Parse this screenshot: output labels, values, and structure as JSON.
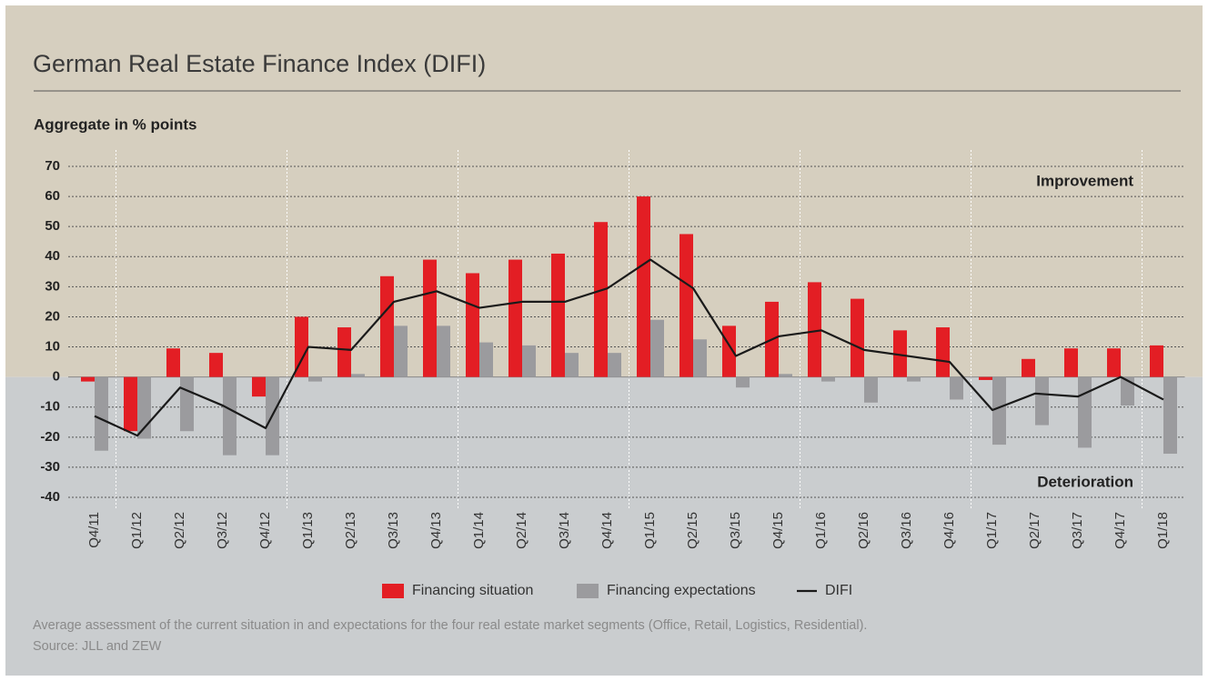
{
  "chart_data": {
    "type": "bar",
    "title": "German Real Estate Finance Index (DIFI)",
    "subtitle": "Aggregate in % points",
    "annotations": [
      "Improvement",
      "Deterioration"
    ],
    "categories": [
      "Q4/11",
      "Q1/12",
      "Q2/12",
      "Q3/12",
      "Q4/12",
      "Q1/13",
      "Q2/13",
      "Q3/13",
      "Q4/13",
      "Q1/14",
      "Q2/14",
      "Q3/14",
      "Q4/14",
      "Q1/15",
      "Q2/15",
      "Q3/15",
      "Q4/15",
      "Q1/16",
      "Q2/16",
      "Q3/16",
      "Q4/16",
      "Q1/17",
      "Q2/17",
      "Q3/17",
      "Q4/17",
      "Q1/18"
    ],
    "series": [
      {
        "name": "Financing situation",
        "type": "bar",
        "color": "#e31e24",
        "values": [
          -1.5,
          -18,
          9.5,
          8,
          -6.5,
          20,
          16.5,
          33.5,
          39,
          34.5,
          39,
          41,
          51.5,
          60,
          47.5,
          17,
          25,
          31.5,
          26,
          15.5,
          16.5,
          -1,
          6,
          9.5,
          9.5,
          10.5
        ]
      },
      {
        "name": "Financing expectations",
        "type": "bar",
        "color": "#9b9b9e",
        "values": [
          -24.5,
          -20.5,
          -18,
          -26,
          -26,
          -1.5,
          1,
          17,
          17,
          11.5,
          10.5,
          8,
          8,
          19,
          12.5,
          -3.5,
          1,
          -1.5,
          -8.5,
          -1.5,
          -7.5,
          -22.5,
          -16,
          -23.5,
          -9.5,
          -25.5
        ]
      },
      {
        "name": "DIFI",
        "type": "line",
        "color": "#1a1a1a",
        "values": [
          -13,
          -19.5,
          -3.5,
          -9.5,
          -17,
          10,
          9,
          25,
          28.5,
          23,
          25,
          25,
          29.5,
          39,
          29.5,
          7,
          13.5,
          15.5,
          9,
          7,
          5,
          -11,
          -5.5,
          -6.5,
          0,
          -7.5
        ]
      }
    ],
    "ylim": [
      -40,
      70
    ],
    "yticks": [
      -40,
      -30,
      -20,
      -10,
      0,
      10,
      20,
      30,
      40,
      50,
      60,
      70
    ],
    "grid": true,
    "legend": "bottom",
    "footnote": "Average assessment of the current situation in and expectations for the four real estate market segments (Office, Retail, Logistics, Residential).",
    "source": "Source: JLL and ZEW"
  }
}
